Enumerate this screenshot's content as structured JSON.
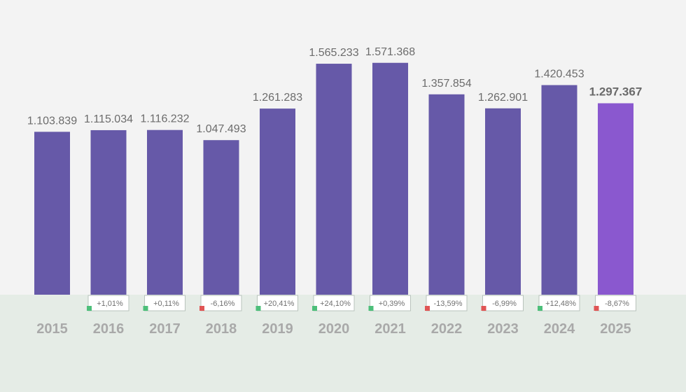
{
  "chart_data": {
    "type": "bar",
    "title": "",
    "xlabel": "",
    "ylabel": "",
    "ylim": [
      0,
      1600000
    ],
    "grid": false,
    "legend": "none",
    "categories": [
      "2015",
      "2016",
      "2017",
      "2018",
      "2019",
      "2020",
      "2021",
      "2022",
      "2023",
      "2024",
      "2025"
    ],
    "values": [
      1103839,
      1115034,
      1116232,
      1047493,
      1261283,
      1565233,
      1571368,
      1357854,
      1262901,
      1420453,
      1297367
    ],
    "value_labels": [
      "1.103.839",
      "1.115.034",
      "1.116.232",
      "1.047.493",
      "1.261.283",
      "1.565.233",
      "1.571.368",
      "1.357.854",
      "1.262.901",
      "1.420.453",
      "1.297.367"
    ],
    "changes": [
      null,
      "+1,01%",
      "+0,11%",
      "-6,16%",
      "+20,41%",
      "+24,10%",
      "+0,39%",
      "-13,59%",
      "-6,99%",
      "+12,48%",
      "-8,67%"
    ],
    "change_direction": [
      null,
      "up",
      "up",
      "down",
      "up",
      "up",
      "up",
      "down",
      "down",
      "up",
      "down"
    ],
    "highlighted_index": 10
  },
  "colors": {
    "bar": "#6659a8",
    "bar_highlight": "#8a58cf",
    "up": "#4dbf7a",
    "down": "#e05555",
    "background": "#f3f3f3",
    "floor": "#e5ece6"
  }
}
